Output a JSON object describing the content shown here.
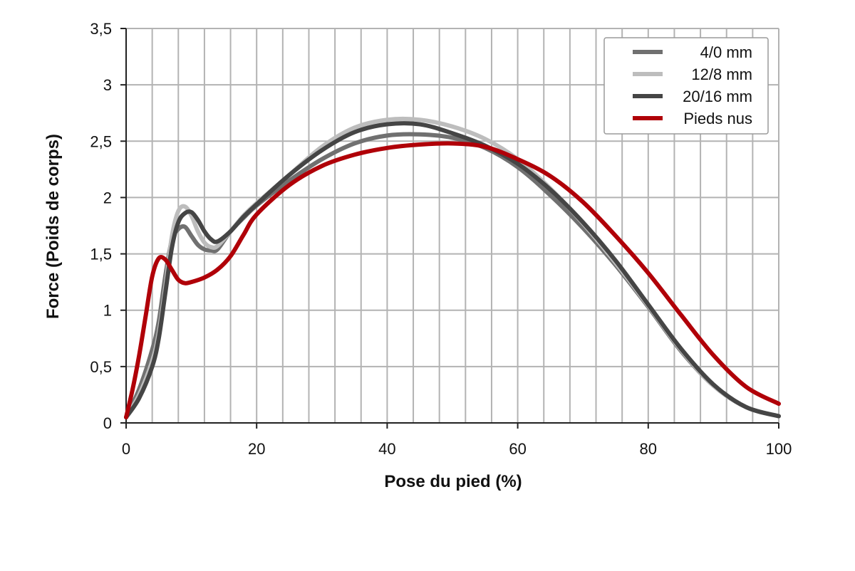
{
  "chart_data": {
    "type": "line",
    "title": "",
    "xlabel": "Pose du pied (%)",
    "ylabel": "Force (Poids de corps)",
    "xlim": [
      0,
      100
    ],
    "ylim": [
      0,
      3.5
    ],
    "x_ticks": [
      {
        "value": 0,
        "label": "0"
      },
      {
        "value": 20,
        "label": "20"
      },
      {
        "value": 40,
        "label": "40"
      },
      {
        "value": 60,
        "label": "60"
      },
      {
        "value": 80,
        "label": "80"
      },
      {
        "value": 100,
        "label": "100"
      }
    ],
    "y_ticks": [
      {
        "value": 0,
        "label": "0"
      },
      {
        "value": 0.5,
        "label": "0,5"
      },
      {
        "value": 1,
        "label": "1"
      },
      {
        "value": 1.5,
        "label": "1,5"
      },
      {
        "value": 2,
        "label": "2"
      },
      {
        "value": 2.5,
        "label": "2,5"
      },
      {
        "value": 3,
        "label": "3"
      },
      {
        "value": 3.5,
        "label": "3,5"
      }
    ],
    "x_minor_step": 4,
    "y_minor_step": 0.5,
    "grid": true,
    "legend_position": "top-right",
    "series": [
      {
        "name": "4/0 mm",
        "color": "#707070",
        "x": [
          0,
          2,
          4,
          5,
          6,
          7,
          8,
          9,
          10,
          11,
          12,
          13,
          14,
          16,
          18,
          20,
          25,
          30,
          35,
          40,
          45,
          50,
          55,
          60,
          65,
          70,
          75,
          80,
          85,
          90,
          95,
          100
        ],
        "y": [
          0.05,
          0.3,
          0.65,
          0.9,
          1.3,
          1.62,
          1.72,
          1.74,
          1.66,
          1.58,
          1.54,
          1.53,
          1.54,
          1.7,
          1.82,
          1.93,
          2.15,
          2.34,
          2.48,
          2.55,
          2.56,
          2.53,
          2.44,
          2.27,
          2.02,
          1.73,
          1.4,
          1.03,
          0.64,
          0.33,
          0.14,
          0.06
        ]
      },
      {
        "name": "12/8 mm",
        "color": "#bdbdbd",
        "x": [
          0,
          2,
          4,
          5,
          6,
          7,
          8,
          9,
          10,
          11,
          12,
          13,
          14,
          16,
          18,
          20,
          25,
          30,
          35,
          40,
          45,
          50,
          55,
          60,
          65,
          70,
          75,
          80,
          85,
          90,
          95,
          100
        ],
        "y": [
          0.05,
          0.25,
          0.55,
          0.8,
          1.2,
          1.65,
          1.88,
          1.92,
          1.84,
          1.7,
          1.6,
          1.56,
          1.57,
          1.7,
          1.84,
          1.95,
          2.2,
          2.45,
          2.62,
          2.69,
          2.69,
          2.63,
          2.52,
          2.34,
          2.08,
          1.77,
          1.42,
          1.04,
          0.65,
          0.33,
          0.14,
          0.06
        ]
      },
      {
        "name": "20/16 mm",
        "color": "#454545",
        "x": [
          0,
          2,
          4,
          5,
          6,
          7,
          8,
          9,
          10,
          11,
          12,
          13,
          14,
          16,
          18,
          20,
          25,
          30,
          35,
          40,
          45,
          50,
          55,
          60,
          65,
          70,
          75,
          80,
          85,
          90,
          95,
          100
        ],
        "y": [
          0.05,
          0.22,
          0.5,
          0.75,
          1.15,
          1.55,
          1.78,
          1.86,
          1.87,
          1.8,
          1.7,
          1.63,
          1.61,
          1.7,
          1.83,
          1.94,
          2.2,
          2.42,
          2.58,
          2.65,
          2.65,
          2.57,
          2.46,
          2.3,
          2.07,
          1.78,
          1.44,
          1.05,
          0.66,
          0.34,
          0.14,
          0.06
        ]
      },
      {
        "name": "Pieds nus",
        "color": "#b00008",
        "x": [
          0,
          1,
          2,
          3,
          4,
          5,
          6,
          7,
          8,
          9,
          10,
          12,
          14,
          16,
          18,
          20,
          25,
          30,
          35,
          40,
          45,
          50,
          55,
          60,
          65,
          70,
          75,
          80,
          85,
          90,
          95,
          100
        ],
        "y": [
          0.05,
          0.3,
          0.6,
          0.95,
          1.3,
          1.46,
          1.45,
          1.36,
          1.27,
          1.24,
          1.25,
          1.29,
          1.36,
          1.48,
          1.67,
          1.85,
          2.11,
          2.28,
          2.38,
          2.44,
          2.47,
          2.48,
          2.45,
          2.34,
          2.19,
          1.96,
          1.66,
          1.33,
          0.96,
          0.6,
          0.32,
          0.17
        ]
      }
    ]
  }
}
